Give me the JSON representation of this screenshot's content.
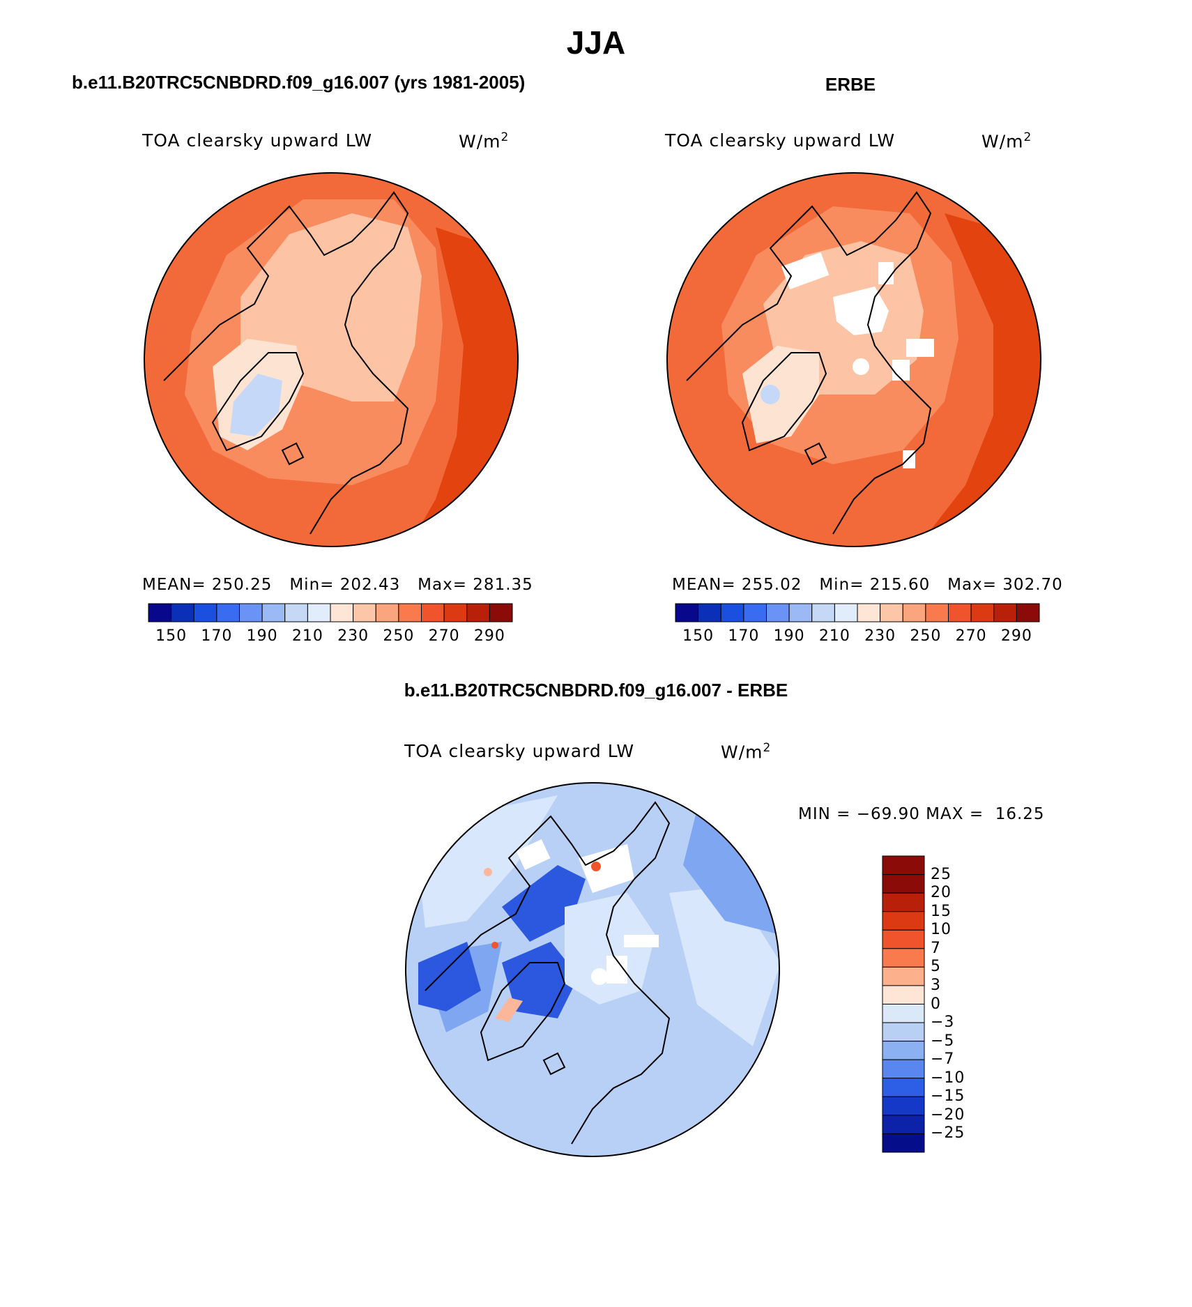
{
  "page_title": "JJA",
  "panels": [
    {
      "title": "b.e11.B20TRC5CNBDRD.f09_g16.007 (yrs 1981-2005)",
      "variable": "TOA clearsky upward LW",
      "units_base": "W/m",
      "units_exp": "2",
      "stats": {
        "mean_label": "MEAN=",
        "mean": "250.25",
        "min_label": "Min=",
        "min": "202.43",
        "max_label": "Max=",
        "max": "281.35"
      }
    },
    {
      "title": "ERBE",
      "variable": "TOA clearsky upward LW",
      "units_base": "W/m",
      "units_exp": "2",
      "stats": {
        "mean_label": "MEAN=",
        "mean": "255.02",
        "min_label": "Min=",
        "min": "215.60",
        "max_label": "Max=",
        "max": "302.70"
      }
    },
    {
      "title": "b.e11.B20TRC5CNBDRD.f09_g16.007 - ERBE",
      "variable": "TOA clearsky upward LW",
      "units_base": "W/m",
      "units_exp": "2",
      "minmax": {
        "min_label": "MIN =",
        "min": "−69.90",
        "max_label": "MAX =",
        "max": "16.25"
      }
    }
  ],
  "colorbar_abs": {
    "colors": [
      "#08088c",
      "#0c2fb8",
      "#1a4fe0",
      "#3a6cf2",
      "#6a93f5",
      "#9ab9f5",
      "#c5d9f7",
      "#e2edfb",
      "#fde6d6",
      "#fcc7a8",
      "#fba57e",
      "#f97a4d",
      "#f0542c",
      "#dc3a12",
      "#b9200a",
      "#8a0b08"
    ],
    "labels": [
      "150",
      "170",
      "190",
      "210",
      "230",
      "250",
      "270",
      "290"
    ]
  },
  "colorbar_diff": {
    "colors": [
      "#8a0b08",
      "#b9200a",
      "#dc3a12",
      "#f0542c",
      "#f97a4d",
      "#fcb08c",
      "#fde6d6",
      "#dbe8f8",
      "#b9d0f5",
      "#8cb1f3",
      "#5a87ef",
      "#2d5ee6",
      "#1438c8",
      "#0c22a8",
      "#050d8a"
    ],
    "labels": [
      "25",
      "20",
      "15",
      "10",
      "7",
      "5",
      "3",
      "0",
      "−3",
      "−5",
      "−7",
      "−10",
      "−15",
      "−20",
      "−25"
    ]
  },
  "map_colors": {
    "ocean_abs": "#f26a3a",
    "abs_mid": "#f98c5f",
    "abs_arctic": "#fcc3a4",
    "abs_light": "#fde3d2",
    "abs_blue": "#c6d8f7",
    "abs_deep": "#e3440f",
    "diff_base": "#b8d0f6",
    "diff_light": "#d8e7fb",
    "diff_mid": "#7fa6f1",
    "diff_dark": "#2c58df",
    "diff_warm": "#fcb79b"
  }
}
